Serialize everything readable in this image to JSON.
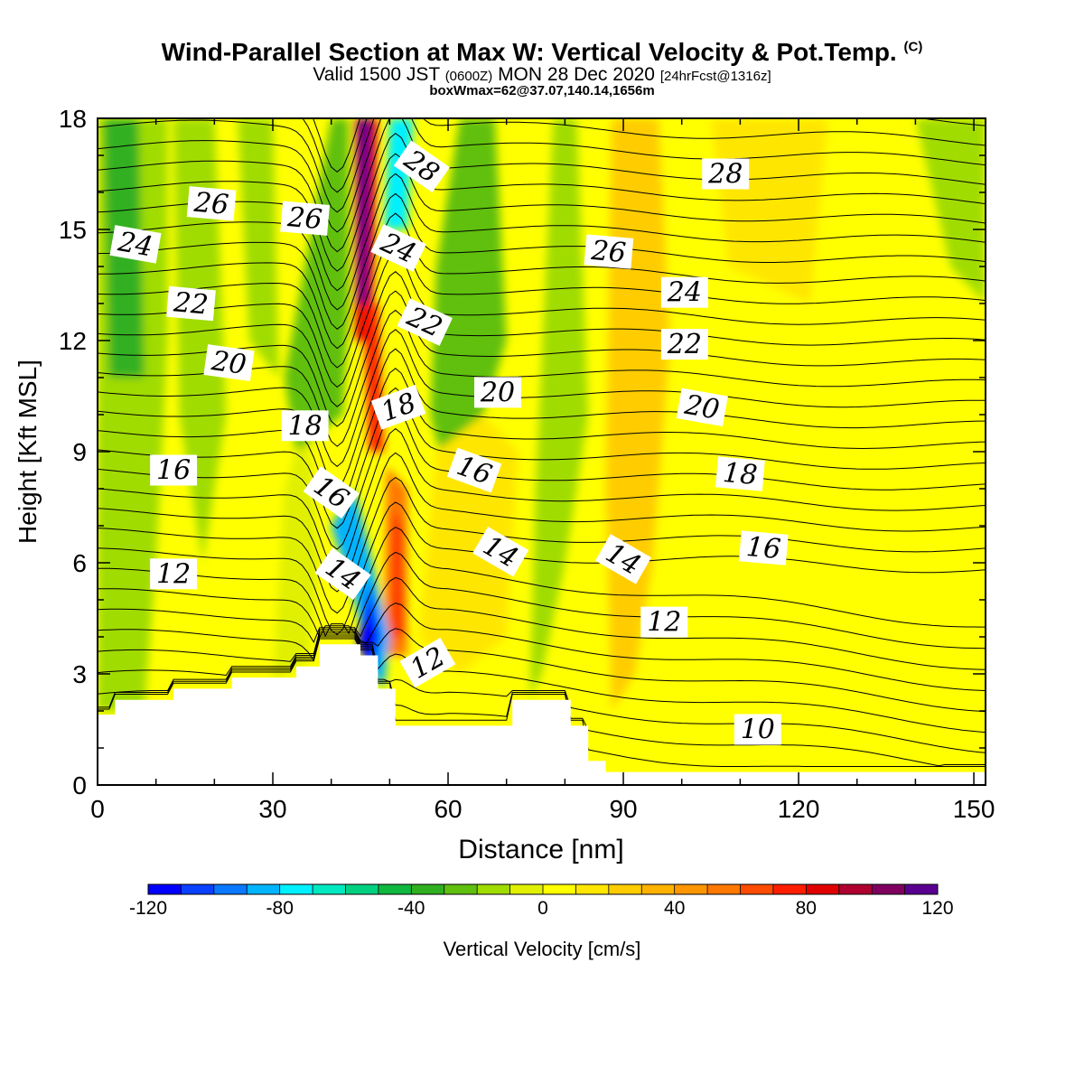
{
  "title": {
    "main": "Wind-Parallel Section at Max W: Vertical Velocity & Pot.Temp.",
    "copyright": "(C)",
    "valid_prefix": "Valid 1500 JST",
    "valid_utc": "(0600Z)",
    "valid_date": "MON 28 Dec 2020",
    "forecast": "[24hrFcst@1316z]",
    "box": "boxWmax=62@37.07,140.14,1656m"
  },
  "chart_data": {
    "type": "heatmap",
    "xlabel": "Distance [nm]",
    "ylabel": "Height [Kft MSL]",
    "xlim": [
      0,
      152
    ],
    "ylim": [
      0,
      18
    ],
    "xticks": [
      "0",
      "30",
      "60",
      "90",
      "120",
      "150"
    ],
    "yticks": [
      "0",
      "3",
      "6",
      "9",
      "12",
      "15",
      "18"
    ],
    "colorbar": {
      "label": "Vertical Velocity [cm/s]",
      "range": [
        -120,
        120
      ],
      "ticks": [
        "-120",
        "-80",
        "-40",
        "0",
        "40",
        "80",
        "120"
      ],
      "colors": [
        "#0000ff",
        "#0a40ff",
        "#0a78ff",
        "#00b4ff",
        "#00f0ff",
        "#00e8c0",
        "#00d080",
        "#10b840",
        "#30b020",
        "#60c010",
        "#a0dc00",
        "#e0f000",
        "#ffff00",
        "#ffe600",
        "#ffcc00",
        "#ffb200",
        "#ff9600",
        "#ff7800",
        "#ff4c00",
        "#ff1e00",
        "#e00000",
        "#b00030",
        "#800060",
        "#5a0090"
      ]
    },
    "terrain_kft": [
      [
        0,
        1.9
      ],
      [
        3,
        1.9
      ],
      [
        3,
        2.3
      ],
      [
        13,
        2.3
      ],
      [
        13,
        2.6
      ],
      [
        23,
        2.6
      ],
      [
        23,
        2.9
      ],
      [
        34,
        2.9
      ],
      [
        34,
        3.2
      ],
      [
        38,
        3.2
      ],
      [
        38,
        3.8
      ],
      [
        45,
        3.8
      ],
      [
        45,
        3.5
      ],
      [
        48,
        3.5
      ],
      [
        48,
        2.6
      ],
      [
        51,
        2.6
      ],
      [
        51,
        1.6
      ],
      [
        71,
        1.6
      ],
      [
        71,
        2.3
      ],
      [
        81,
        2.3
      ],
      [
        81,
        1.6
      ],
      [
        84,
        1.6
      ],
      [
        84,
        0.65
      ],
      [
        87,
        0.65
      ],
      [
        87,
        0.35
      ],
      [
        152,
        0.35
      ]
    ],
    "vertical_velocity_features": [
      {
        "kind": "updraft",
        "x0": 45,
        "x1": 46,
        "ybot": 8.5,
        "ytop": 18,
        "peak_cm_s": 110
      },
      {
        "kind": "updraft",
        "x0": 50,
        "x1": 52,
        "ybot": 2.8,
        "ytop": 8.5,
        "peak_cm_s": 55
      },
      {
        "kind": "downdraft",
        "x0": 45,
        "x1": 52,
        "ybot": 15,
        "ytop": 18,
        "peak_cm_s": -75
      },
      {
        "kind": "downdraft",
        "x0": 46,
        "x1": 50,
        "ybot": 2.6,
        "ytop": 7,
        "peak_cm_s": -110
      },
      {
        "kind": "updraft",
        "x0": 92,
        "x1": 98,
        "ybot": 4,
        "ytop": 18,
        "peak_cm_s": 25
      },
      {
        "kind": "downdraft",
        "x0": 2,
        "x1": 8,
        "ybot": 11,
        "ytop": 18,
        "peak_cm_s": -40
      }
    ],
    "theta_contour_labels": [
      {
        "text": "28",
        "x": 55.5,
        "y": 16.7,
        "rot": 35
      },
      {
        "text": "28",
        "x": 107.5,
        "y": 16.5,
        "rot": 0
      },
      {
        "text": "26",
        "x": 19.5,
        "y": 15.7,
        "rot": 5
      },
      {
        "text": "26",
        "x": 35.5,
        "y": 15.3,
        "rot": 5
      },
      {
        "text": "26",
        "x": 87.5,
        "y": 14.4,
        "rot": 5
      },
      {
        "text": "24",
        "x": 6.5,
        "y": 14.6,
        "rot": 10
      },
      {
        "text": "24",
        "x": 51.5,
        "y": 14.5,
        "rot": 25
      },
      {
        "text": "24",
        "x": 100.5,
        "y": 13.3,
        "rot": 0
      },
      {
        "text": "22",
        "x": 16,
        "y": 13.0,
        "rot": 5
      },
      {
        "text": "22",
        "x": 56,
        "y": 12.5,
        "rot": 25
      },
      {
        "text": "22",
        "x": 100.5,
        "y": 11.9,
        "rot": 0
      },
      {
        "text": "20",
        "x": 22.5,
        "y": 11.4,
        "rot": 8
      },
      {
        "text": "20",
        "x": 68.5,
        "y": 10.6,
        "rot": 0
      },
      {
        "text": "20",
        "x": 103.5,
        "y": 10.2,
        "rot": 10
      },
      {
        "text": "18",
        "x": 35.5,
        "y": 9.7,
        "rot": 0
      },
      {
        "text": "18",
        "x": 51.5,
        "y": 10.2,
        "rot": -20
      },
      {
        "text": "18",
        "x": 110,
        "y": 8.4,
        "rot": 5
      },
      {
        "text": "16",
        "x": 13,
        "y": 8.5,
        "rot": 0
      },
      {
        "text": "16",
        "x": 40,
        "y": 7.9,
        "rot": 35
      },
      {
        "text": "16",
        "x": 64.5,
        "y": 8.5,
        "rot": 20
      },
      {
        "text": "16",
        "x": 114,
        "y": 6.4,
        "rot": 5
      },
      {
        "text": "14",
        "x": 42,
        "y": 5.7,
        "rot": 35
      },
      {
        "text": "14",
        "x": 69,
        "y": 6.3,
        "rot": 30
      },
      {
        "text": "14",
        "x": 90,
        "y": 6.1,
        "rot": 30
      },
      {
        "text": "12",
        "x": 13,
        "y": 5.7,
        "rot": 0
      },
      {
        "text": "12",
        "x": 56.5,
        "y": 3.3,
        "rot": -30
      },
      {
        "text": "12",
        "x": 97,
        "y": 4.4,
        "rot": 0
      },
      {
        "text": "10",
        "x": 113,
        "y": 1.5,
        "rot": 0
      }
    ]
  }
}
